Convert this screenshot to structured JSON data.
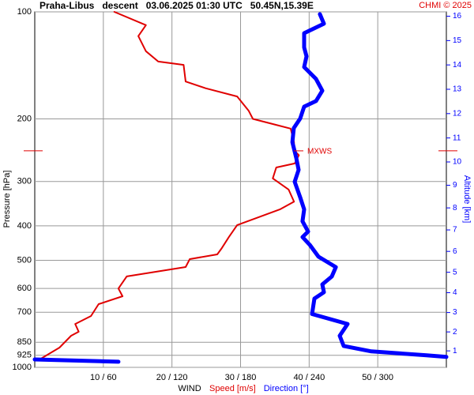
{
  "chart_data": {
    "type": "profile",
    "title": "Praha-Libus   descent   03.06.2025 01:30 UTC   50.45N,15.39E",
    "credit": "CHMI © 2025",
    "y_label": "Pressure [hPa]",
    "y2_label": "Altitude [km]",
    "x_label": "WIND",
    "log_y": true,
    "grid": true,
    "ylim": [
      1000,
      100
    ],
    "yticks": [
      100,
      200,
      300,
      400,
      500,
      600,
      700,
      850,
      925,
      1000
    ],
    "xlim": [
      0,
      60
    ],
    "x2lim": [
      0,
      360
    ],
    "xticks": [
      {
        "value": 10,
        "label": "10 / 60"
      },
      {
        "value": 20,
        "label": "20 / 120"
      },
      {
        "value": 30,
        "label": "30 / 180"
      },
      {
        "value": 40,
        "label": "40 / 240"
      },
      {
        "value": 50,
        "label": "50 / 300"
      }
    ],
    "y2ticks": [
      1,
      2,
      3,
      4,
      5,
      6,
      7,
      8,
      9,
      10,
      11,
      12,
      13,
      14,
      15,
      16
    ],
    "annotations": [
      {
        "text": "MXWS",
        "pressure": 246
      }
    ],
    "series": [
      {
        "name": "Speed [m/s]",
        "color": "#e00000",
        "axis": "x",
        "pressure": [
          100,
          109,
          117,
          129,
          138,
          141,
          157,
          164,
          173,
          190,
          200,
          208,
          213,
          233,
          245,
          253,
          267,
          274,
          294,
          316,
          342,
          359,
          398,
          430,
          464,
          481,
          496,
          522,
          555,
          600,
          631,
          664,
          717,
          755,
          794,
          815,
          880,
          950
        ],
        "values": [
          11.6,
          16.2,
          15.1,
          16.2,
          18.0,
          21.7,
          22.0,
          24.9,
          29.5,
          31.2,
          31.8,
          35.2,
          37.3,
          37.8,
          37.8,
          38.5,
          37.9,
          35.2,
          34.7,
          37.0,
          37.8,
          35.8,
          29.5,
          28.3,
          27.2,
          26.6,
          22.6,
          22.0,
          13.4,
          12.2,
          12.8,
          9.3,
          8.2,
          5.9,
          6.4,
          5.3,
          3.6,
          0.7
        ]
      },
      {
        "name": "Direction [°]",
        "color": "#0000ff",
        "axis": "x2",
        "pressure": [
          101.5,
          108,
          114.8,
          125.9,
          133.4,
          143,
          154.4,
          166.6,
          178.2,
          184.8,
          199.5,
          212.3,
          232.6,
          257.6,
          278.3,
          300.6,
          332.5,
          359.4,
          388.3,
          414.9,
          430,
          452.3,
          488.2,
          522.3,
          555.2,
          584.2,
          614.8,
          640.3,
          708,
          754.9,
          815.1,
          870.4,
          901.6,
          924.8,
          934.6,
          null,
          949.9,
          964.5
        ],
        "values": [
          249.4,
          252.9,
          235.6,
          235.6,
          237.7,
          235.6,
          246.0,
          251.5,
          246.0,
          235.6,
          232.2,
          226.6,
          225.3,
          228.7,
          230.8,
          227.3,
          232.2,
          235.6,
          234.2,
          239.1,
          234.2,
          240.5,
          248.1,
          263.3,
          259.8,
          251.5,
          252.9,
          244.6,
          242.5,
          273.6,
          266.7,
          270.2,
          294.4,
          342.7,
          360,
          null,
          0,
          73.2
        ]
      }
    ]
  }
}
